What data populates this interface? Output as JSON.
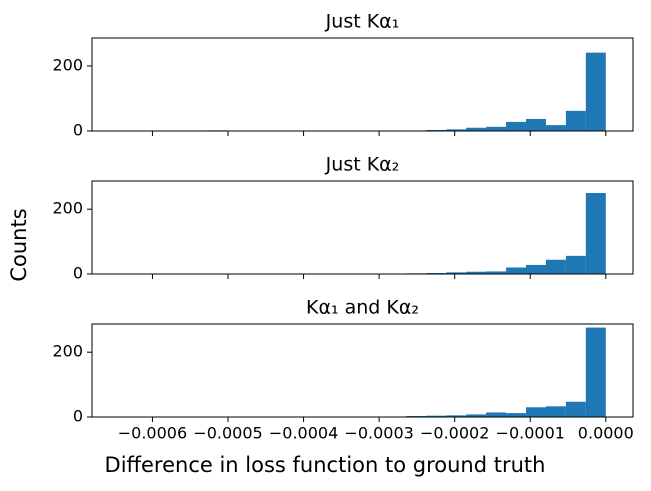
{
  "chart_data": [
    {
      "type": "histogram",
      "title": "Just Kα₁",
      "color": "#1f77b4",
      "bins": [
        -0.00066,
        -0.0006336,
        -0.0006072,
        -0.0005808,
        -0.0005544,
        -0.000528,
        -0.0005016,
        -0.0004752,
        -0.0004488,
        -0.0004224,
        -0.000396,
        -0.0003696,
        -0.0003432,
        -0.0003168,
        -0.0002904,
        -0.000264,
        -0.0002376,
        -0.0002112,
        -0.0001848,
        -0.0001584,
        -0.000132,
        -0.0001056,
        -7.92e-05,
        -5.28e-05,
        -2.64e-05,
        0
      ],
      "values": [
        0,
        0,
        0,
        0,
        0,
        2,
        0,
        0,
        0,
        1,
        0,
        1,
        1,
        1,
        0,
        0,
        3,
        5,
        10,
        13,
        28,
        37,
        18,
        62,
        241
      ],
      "xlim": [
        -0.00068,
        3.6e-05
      ],
      "ylim": [
        0,
        286
      ],
      "yticks": [
        0,
        200
      ],
      "xticks": [
        -0.0006,
        -0.0005,
        -0.0004,
        -0.0003,
        -0.0002,
        -0.0001,
        0
      ]
    },
    {
      "type": "histogram",
      "title": "Just Kα₂",
      "color": "#1f77b4",
      "ylabel": "Counts",
      "bins": [
        -0.00066,
        -0.0006336,
        -0.0006072,
        -0.0005808,
        -0.0005544,
        -0.000528,
        -0.0005016,
        -0.0004752,
        -0.0004488,
        -0.0004224,
        -0.000396,
        -0.0003696,
        -0.0003432,
        -0.0003168,
        -0.0002904,
        -0.000264,
        -0.0002376,
        -0.0002112,
        -0.0001848,
        -0.0001584,
        -0.000132,
        -0.0001056,
        -7.92e-05,
        -5.28e-05,
        -2.64e-05,
        0
      ],
      "values": [
        0,
        0,
        0,
        0,
        0,
        0,
        0,
        0,
        0,
        0,
        1,
        1,
        1,
        0,
        1,
        2,
        3,
        5,
        7,
        8,
        20,
        28,
        44,
        56,
        250
      ],
      "xlim": [
        -0.00068,
        3.6e-05
      ],
      "ylim": [
        0,
        287
      ],
      "yticks": [
        0,
        200
      ],
      "xticks": [
        -0.0006,
        -0.0005,
        -0.0004,
        -0.0003,
        -0.0002,
        -0.0001,
        0
      ]
    },
    {
      "type": "histogram",
      "title": "Kα₁ and Kα₂",
      "color": "#1f77b4",
      "xlabel": "Difference in loss function to ground truth",
      "bins": [
        -0.00066,
        -0.0006336,
        -0.0006072,
        -0.0005808,
        -0.0005544,
        -0.000528,
        -0.0005016,
        -0.0004752,
        -0.0004488,
        -0.0004224,
        -0.000396,
        -0.0003696,
        -0.0003432,
        -0.0003168,
        -0.0002904,
        -0.000264,
        -0.0002376,
        -0.0002112,
        -0.0001848,
        -0.0001584,
        -0.000132,
        -0.0001056,
        -7.92e-05,
        -5.28e-05,
        -2.64e-05,
        0
      ],
      "values": [
        0,
        0,
        0,
        0,
        0,
        0,
        0,
        0,
        0,
        1,
        0,
        0,
        0,
        0,
        1,
        3,
        4,
        5,
        8,
        14,
        12,
        30,
        33,
        47,
        276
      ],
      "xlim": [
        -0.00068,
        3.6e-05
      ],
      "ylim": [
        0,
        287
      ],
      "yticks": [
        0,
        200
      ],
      "xticks": [
        {
          "value": -0.0006,
          "label": "−0.0006"
        },
        {
          "value": -0.0005,
          "label": "−0.0005"
        },
        {
          "value": -0.0004,
          "label": "−0.0004"
        },
        {
          "value": -0.0003,
          "label": "−0.0003"
        },
        {
          "value": -0.0002,
          "label": "−0.0002"
        },
        {
          "value": -0.0001,
          "label": "−0.0001"
        },
        {
          "value": 0,
          "label": "0.0000"
        }
      ]
    }
  ]
}
